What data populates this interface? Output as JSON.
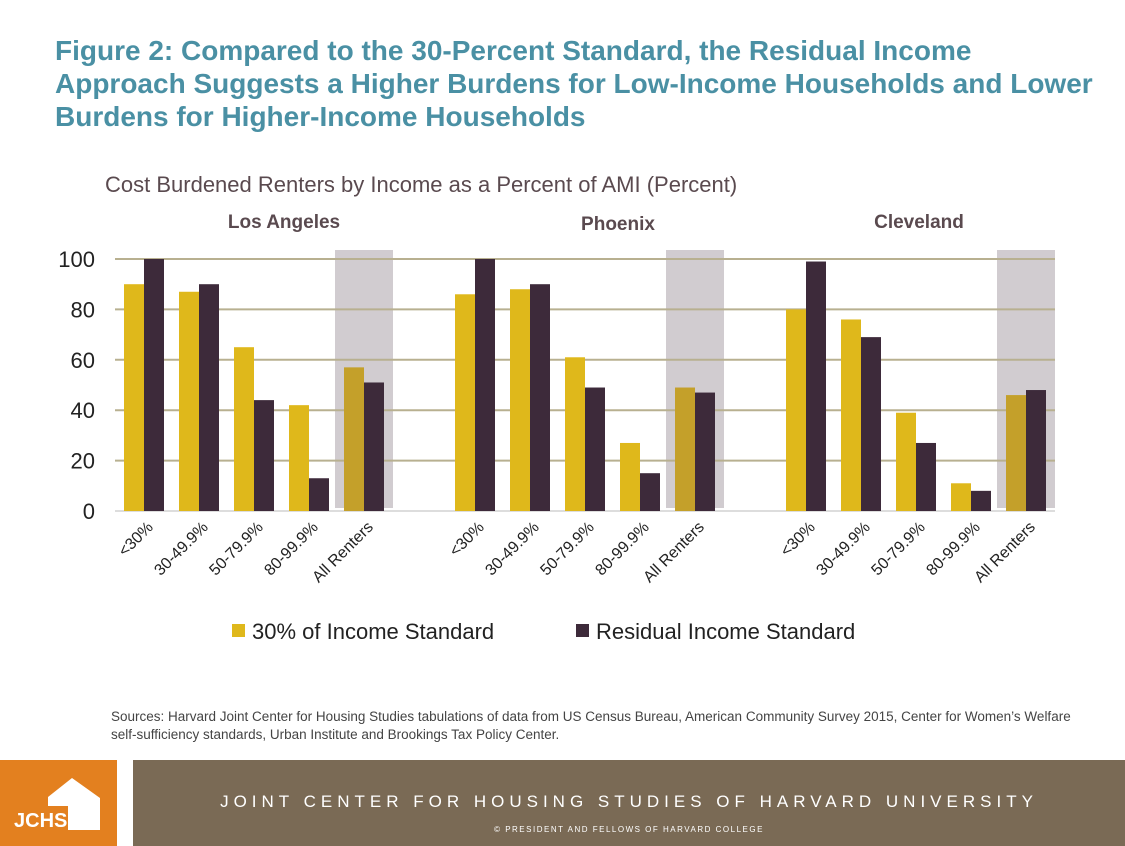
{
  "header": {
    "title": "Figure 2: Compared to the 30-Percent Standard, the Residual Income Approach Suggests a Higher Burdens for Low-Income Households and Lower Burdens for Higher-Income Households"
  },
  "chart_data": {
    "type": "bar",
    "title": "Cost Burdened Renters by Income as a Percent of AMI (Percent)",
    "ylim": [
      0,
      100
    ],
    "yticks": [
      "0",
      "20",
      "40",
      "60",
      "80",
      "100"
    ],
    "grid": true,
    "legend_position": "bottom",
    "categories": [
      "<30%",
      "30-49.9%",
      "50-79.9%",
      "80-99.9%",
      "All Renters"
    ],
    "highlighted_category": "All Renters",
    "colors": {
      "30% of Income Standard": "#dfb81b",
      "Residual Income Standard": "#3d2a3a",
      "highlight": "#d1ccd0",
      "grid": "#b8b090"
    },
    "panels": [
      {
        "name": "Los Angeles",
        "series": [
          {
            "name": "30% of Income Standard",
            "values": [
              90,
              87,
              65,
              42,
              57
            ]
          },
          {
            "name": "Residual Income Standard",
            "values": [
              100,
              90,
              44,
              13,
              51
            ]
          }
        ]
      },
      {
        "name": "Phoenix",
        "series": [
          {
            "name": "30% of Income Standard",
            "values": [
              86,
              88,
              61,
              27,
              49
            ]
          },
          {
            "name": "Residual Income Standard",
            "values": [
              100,
              90,
              49,
              15,
              47
            ]
          }
        ]
      },
      {
        "name": "Cleveland",
        "series": [
          {
            "name": "30% of Income Standard",
            "values": [
              80,
              76,
              39,
              11,
              46
            ]
          },
          {
            "name": "Residual Income Standard",
            "values": [
              99,
              69,
              27,
              8,
              48
            ]
          }
        ]
      }
    ],
    "legend": [
      "30% of Income Standard",
      "Residual Income Standard"
    ]
  },
  "footer": {
    "source": "Sources: Harvard Joint Center for Housing Studies tabulations of data from US Census Bureau, American Community Survey 2015, Center for Women’s Welfare self-sufficiency standards, Urban Institute and Brookings Tax Policy Center.",
    "logo": "JCHS",
    "banner": "JOINT CENTER FOR HOUSING STUDIES OF HARVARD UNIVERSITY",
    "copyright": "© PRESIDENT AND FELLOWS OF HARVARD COLLEGE"
  }
}
